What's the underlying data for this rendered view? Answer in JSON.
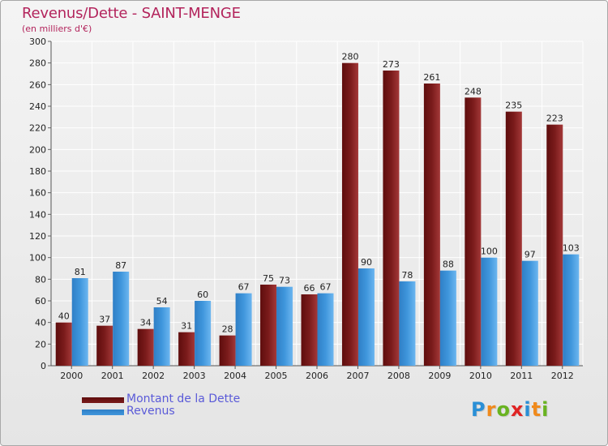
{
  "title": "Revenus/Dette - SAINT-MENGE",
  "subtitle": "(en milliers d'€)",
  "colors": {
    "title": "#b3245c",
    "dette": "#7a1b1b",
    "revenus": "#3f96dc",
    "legend_text": "#5a5ad8"
  },
  "chart_data": {
    "type": "bar",
    "categories": [
      "2000",
      "2001",
      "2002",
      "2003",
      "2004",
      "2005",
      "2006",
      "2007",
      "2008",
      "2009",
      "2010",
      "2011",
      "2012"
    ],
    "series": [
      {
        "name": "Montant de la Dette",
        "values": [
          40,
          37,
          34,
          31,
          28,
          75,
          66,
          280,
          273,
          261,
          248,
          235,
          223
        ]
      },
      {
        "name": "Revenus",
        "values": [
          81,
          87,
          54,
          60,
          67,
          73,
          67,
          90,
          78,
          88,
          100,
          97,
          103
        ]
      }
    ],
    "ylim": [
      0,
      300
    ],
    "yticks": [
      0,
      20,
      40,
      60,
      80,
      100,
      120,
      140,
      160,
      180,
      200,
      220,
      240,
      260,
      280,
      300
    ],
    "grid": true,
    "legend_position": "bottom-left"
  },
  "legend": {
    "dette_label": "Montant de la Dette",
    "revenus_label": "Revenus"
  },
  "logo": {
    "letters": [
      "P",
      "r",
      "o",
      "x",
      "i",
      "t",
      "i"
    ],
    "letter_colors": [
      "#2a8fd6",
      "#f08a1c",
      "#69b320",
      "#e02424",
      "#2a8fd6",
      "#f08a1c",
      "#69b320"
    ]
  }
}
